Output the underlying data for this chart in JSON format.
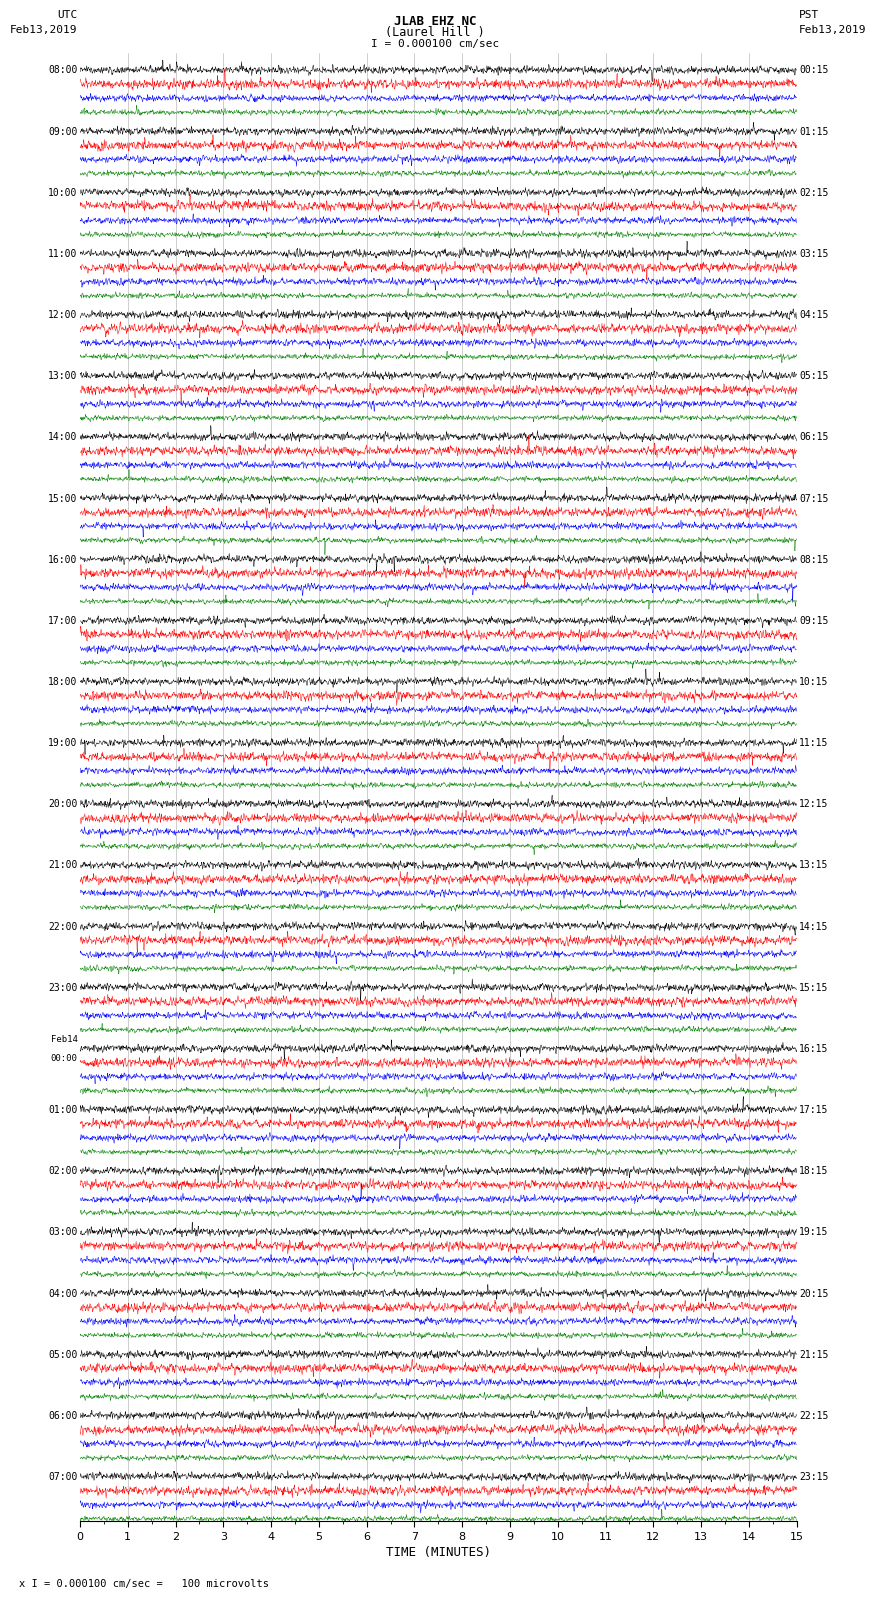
{
  "title_line1": "JLAB EHZ NC",
  "title_line2": "(Laurel Hill )",
  "scale_label": "I = 0.000100 cm/sec",
  "left_label_top": "UTC",
  "left_label_date": "Feb13,2019",
  "right_label_top": "PST",
  "right_label_date": "Feb13,2019",
  "xlabel": "TIME (MINUTES)",
  "footer": "x I = 0.000100 cm/sec =   100 microvolts",
  "utc_times_left": [
    "08:00",
    "09:00",
    "10:00",
    "11:00",
    "12:00",
    "13:00",
    "14:00",
    "15:00",
    "16:00",
    "17:00",
    "18:00",
    "19:00",
    "20:00",
    "21:00",
    "22:00",
    "23:00",
    "Feb14\n00:00",
    "01:00",
    "02:00",
    "03:00",
    "04:00",
    "05:00",
    "06:00",
    "07:00"
  ],
  "pst_times_right": [
    "00:15",
    "01:15",
    "02:15",
    "03:15",
    "04:15",
    "05:15",
    "06:15",
    "07:15",
    "08:15",
    "09:15",
    "10:15",
    "11:15",
    "12:15",
    "13:15",
    "14:15",
    "15:15",
    "16:15",
    "17:15",
    "18:15",
    "19:15",
    "20:15",
    "21:15",
    "22:15",
    "23:15"
  ],
  "colors": [
    "black",
    "red",
    "blue",
    "green"
  ],
  "n_rows": 24,
  "traces_per_row": 4,
  "time_minutes": 15,
  "samples_per_trace": 2250,
  "bg_color": "white",
  "plot_bg_color": "white",
  "line_width": 0.35,
  "font_family": "monospace",
  "grid_color": "#aaaaaa",
  "grid_linewidth": 0.4
}
